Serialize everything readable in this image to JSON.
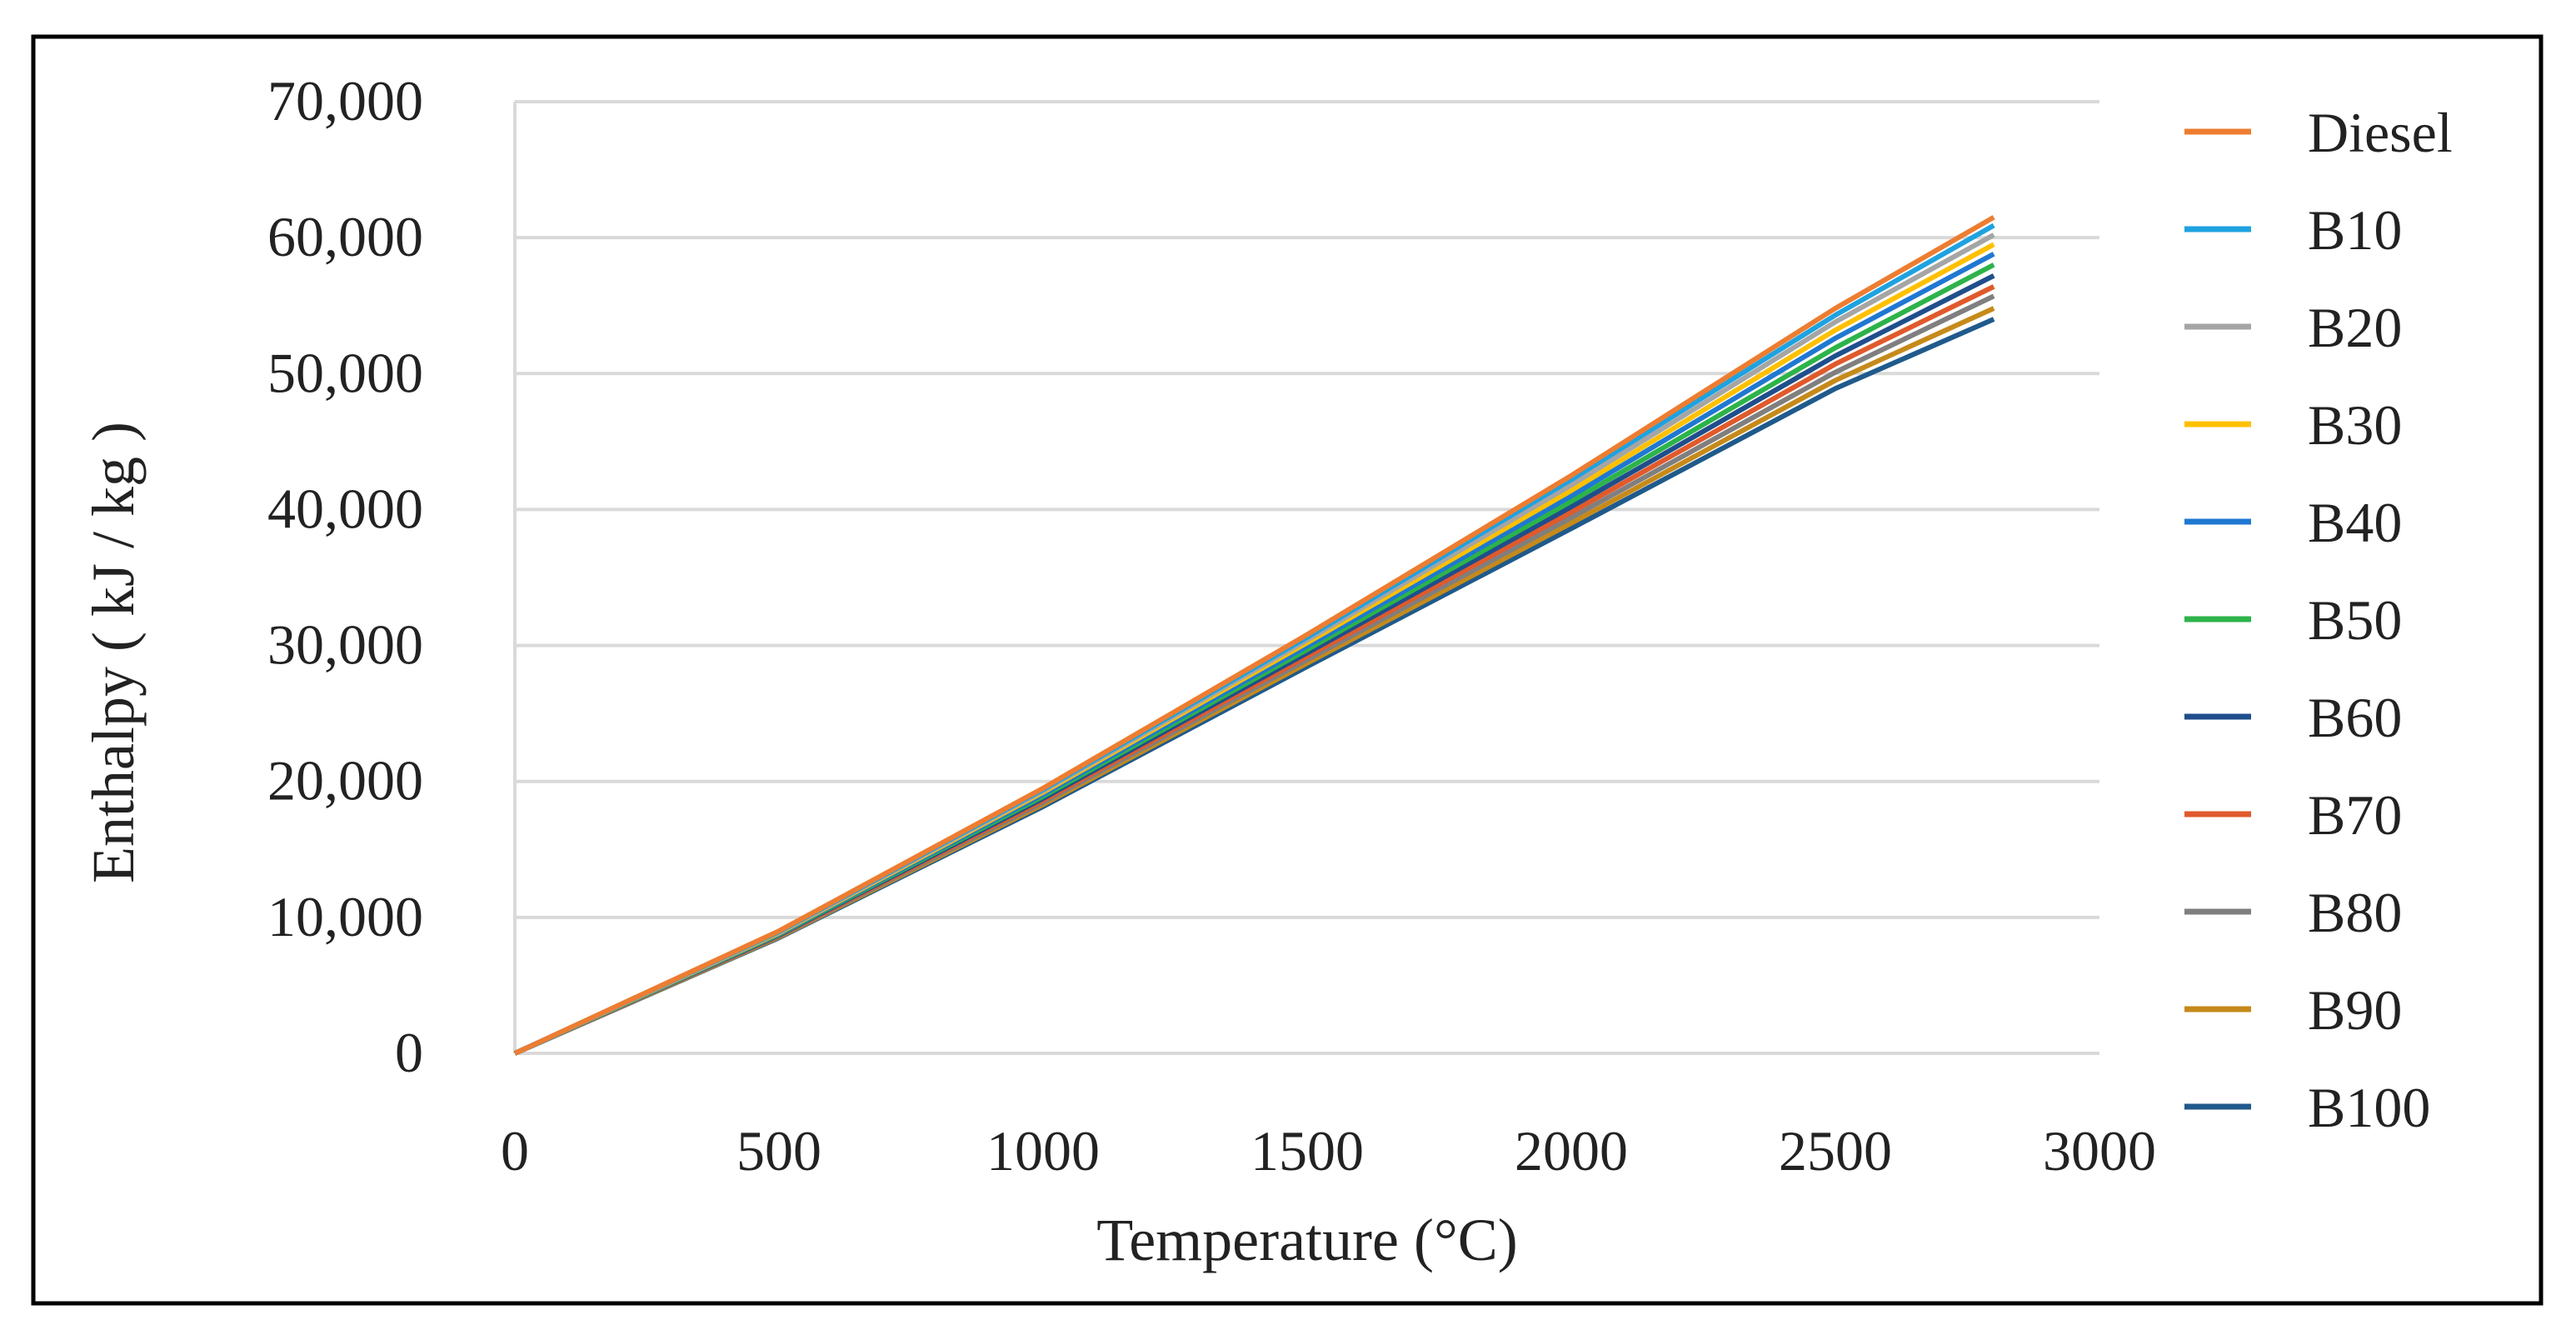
{
  "chart_data": {
    "type": "line",
    "title": "",
    "xlabel": "Temperature (°C)",
    "ylabel": "Enthalpy ( kJ / kg )",
    "xlim": [
      0,
      3000
    ],
    "ylim": [
      0,
      70000
    ],
    "xticks": [
      0,
      500,
      1000,
      1500,
      2000,
      2500,
      3000
    ],
    "xtick_labels": [
      "0",
      "500",
      "1000",
      "1500",
      "2000",
      "2500",
      "3000"
    ],
    "yticks": [
      0,
      10000,
      20000,
      30000,
      40000,
      50000,
      60000,
      70000
    ],
    "ytick_labels": [
      "0",
      "10,000",
      "20,000",
      "30,000",
      "40,000",
      "50,000",
      "60,000",
      "70,000"
    ],
    "grid": "horizontal",
    "legend_position": "right",
    "x": [
      0,
      500,
      1000,
      1500,
      2000,
      2500,
      2800
    ],
    "series": [
      {
        "name": "Diesel",
        "color": "#ED7D31",
        "values": [
          0,
          9000,
          19500,
          30800,
          42500,
          54800,
          61500
        ]
      },
      {
        "name": "B10",
        "color": "#1FA2E0",
        "values": [
          0,
          8950,
          19400,
          30600,
          42200,
          54300,
          60900
        ]
      },
      {
        "name": "B20",
        "color": "#A5A5A5",
        "values": [
          0,
          8900,
          19300,
          30400,
          41800,
          53800,
          60200
        ]
      },
      {
        "name": "B30",
        "color": "#FFC000",
        "values": [
          0,
          8850,
          19200,
          30200,
          41400,
          53200,
          59500
        ]
      },
      {
        "name": "B40",
        "color": "#1F78D1",
        "values": [
          0,
          8800,
          19050,
          29950,
          41000,
          52600,
          58800
        ]
      },
      {
        "name": "B50",
        "color": "#2DB34A",
        "values": [
          0,
          8750,
          18900,
          29700,
          40600,
          51900,
          58000
        ]
      },
      {
        "name": "B60",
        "color": "#1F4E8C",
        "values": [
          0,
          8700,
          18750,
          29450,
          40200,
          51300,
          57200
        ]
      },
      {
        "name": "B70",
        "color": "#E05A2B",
        "values": [
          0,
          8650,
          18600,
          29200,
          39800,
          50700,
          56400
        ]
      },
      {
        "name": "B80",
        "color": "#7F7F7F",
        "values": [
          0,
          8600,
          18450,
          28950,
          39400,
          50100,
          55700
        ]
      },
      {
        "name": "B90",
        "color": "#C68A1A",
        "values": [
          0,
          8550,
          18300,
          28700,
          39000,
          49500,
          54800
        ]
      },
      {
        "name": "B100",
        "color": "#1F5A8C",
        "values": [
          0,
          8500,
          18150,
          28450,
          38600,
          48900,
          54000
        ]
      }
    ]
  }
}
